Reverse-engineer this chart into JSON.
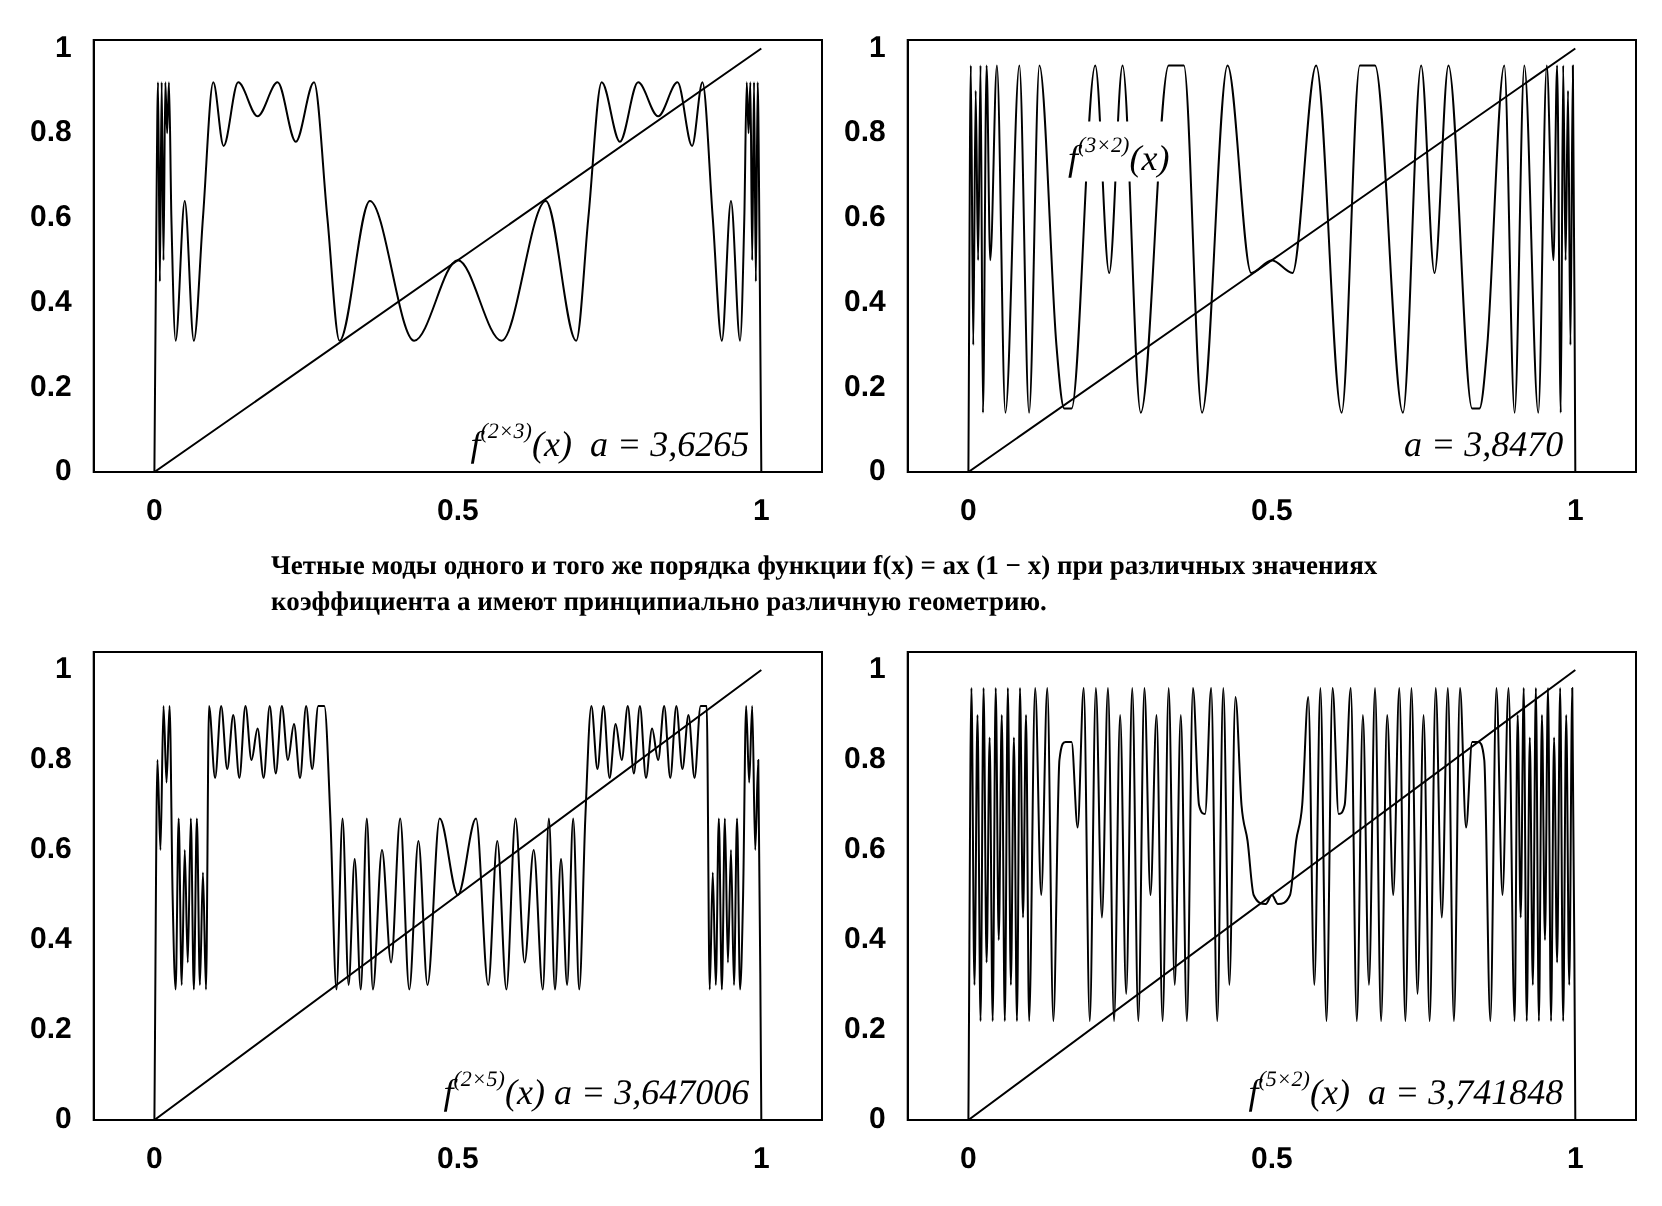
{
  "chart_data": [
    {
      "type": "line",
      "xlim": [
        -0.1,
        1.1
      ],
      "ylim": [
        0,
        1.02
      ],
      "xticks": [
        0,
        0.5,
        1
      ],
      "yticks": [
        0,
        0.2,
        0.4,
        0.6,
        0.8,
        1
      ],
      "grid": false,
      "legend": false,
      "annotations": [
        "f$^{(2×3)}$(x)  a = 3,6265"
      ],
      "series": [
        {
          "color": "#000000",
          "x": [
            0,
            0.003,
            0.006,
            0.009,
            0.012,
            0.015,
            0.018,
            0.021,
            0.024,
            0.028,
            0.035,
            0.05,
            0.065,
            0.08,
            0.097,
            0.114,
            0.138,
            0.17,
            0.203,
            0.233,
            0.263,
            0.285,
            0.305,
            0.355,
            0.428,
            0.5,
            0.572,
            0.645,
            0.695,
            0.715,
            0.737,
            0.767,
            0.797,
            0.83,
            0.862,
            0.886,
            0.903,
            0.92,
            0.935,
            0.95,
            0.965,
            0.972,
            0.976,
            0.979,
            0.982,
            0.985,
            0.988,
            0.991,
            0.994,
            0.997,
            1
          ],
          "values": [
            0,
            0.55,
            0.92,
            0.45,
            0.92,
            0.5,
            0.92,
            0.8,
            0.92,
            0.6,
            0.31,
            0.64,
            0.31,
            0.6,
            0.92,
            0.77,
            0.92,
            0.84,
            0.92,
            0.78,
            0.92,
            0.6,
            0.31,
            0.64,
            0.31,
            0.5,
            0.31,
            0.64,
            0.31,
            0.6,
            0.92,
            0.78,
            0.92,
            0.84,
            0.92,
            0.77,
            0.92,
            0.6,
            0.31,
            0.64,
            0.31,
            0.6,
            0.92,
            0.8,
            0.92,
            0.5,
            0.92,
            0.45,
            0.92,
            0.55,
            0
          ]
        },
        {
          "color": "#000000",
          "x": [
            0,
            1
          ],
          "values": [
            0,
            1
          ]
        }
      ]
    },
    {
      "type": "line",
      "xlim": [
        -0.1,
        1.1
      ],
      "ylim": [
        0,
        1.02
      ],
      "xticks": [
        0,
        0.5,
        1
      ],
      "yticks": [
        0,
        0.2,
        0.4,
        0.6,
        0.8,
        1
      ],
      "grid": false,
      "legend": false,
      "annotations": [
        "f$^{(3×2)}$(x)",
        "a = 3,8470"
      ],
      "series": [
        {
          "color": "#000000",
          "x": [
            0,
            0.004,
            0.008,
            0.012,
            0.016,
            0.02,
            0.024,
            0.03,
            0.036,
            0.047,
            0.061,
            0.084,
            0.1,
            0.117,
            0.145,
            0.158,
            0.17,
            0.209,
            0.232,
            0.254,
            0.284,
            0.33,
            0.355,
            0.385,
            0.427,
            0.466,
            0.5,
            0.534,
            0.573,
            0.615,
            0.645,
            0.67,
            0.716,
            0.746,
            0.768,
            0.791,
            0.83,
            0.842,
            0.855,
            0.883,
            0.9,
            0.916,
            0.939,
            0.953,
            0.964,
            0.97,
            0.976,
            0.98,
            0.984,
            0.988,
            0.992,
            0.996,
            1
          ],
          "values": [
            0,
            0.96,
            0.3,
            0.9,
            0.5,
            0.96,
            0.14,
            0.96,
            0.5,
            0.96,
            0.14,
            0.96,
            0.14,
            0.96,
            0.3,
            0.15,
            0.15,
            0.96,
            0.47,
            0.96,
            0.14,
            0.96,
            0.96,
            0.14,
            0.96,
            0.47,
            0.5,
            0.47,
            0.96,
            0.14,
            0.96,
            0.96,
            0.14,
            0.96,
            0.47,
            0.96,
            0.15,
            0.15,
            0.3,
            0.96,
            0.14,
            0.96,
            0.14,
            0.96,
            0.5,
            0.96,
            0.14,
            0.96,
            0.5,
            0.9,
            0.3,
            0.96,
            0
          ]
        },
        {
          "color": "#000000",
          "x": [
            0,
            1
          ],
          "values": [
            0,
            1
          ]
        }
      ]
    },
    {
      "type": "other",
      "annotations": [
        "Четные моды одного и того же порядка функции f(x) = ax (1 − x) при различных значениях коэффициента a имеют принципиально различную геометрию."
      ]
    },
    {
      "type": "line",
      "xlim": [
        -0.1,
        1.1
      ],
      "ylim": [
        0,
        1.04
      ],
      "xticks": [
        0,
        0.5,
        1
      ],
      "yticks": [
        0,
        0.2,
        0.4,
        0.6,
        0.8,
        1
      ],
      "grid": false,
      "legend": false,
      "annotations": [
        "f$^{(2×5)}$(x) a = 3,647006"
      ],
      "series": [
        {
          "color": "#000000",
          "x": [
            0,
            0.005,
            0.01,
            0.015,
            0.02,
            0.025,
            0.03,
            0.035,
            0.04,
            0.045,
            0.05,
            0.055,
            0.06,
            0.065,
            0.07,
            0.075,
            0.08,
            0.085,
            0.09,
            0.1,
            0.11,
            0.12,
            0.13,
            0.14,
            0.15,
            0.16,
            0.17,
            0.18,
            0.19,
            0.2,
            0.21,
            0.22,
            0.23,
            0.24,
            0.25,
            0.26,
            0.27,
            0.28,
            0.29,
            0.3,
            0.31,
            0.32,
            0.33,
            0.34,
            0.35,
            0.36,
            0.375,
            0.39,
            0.405,
            0.42,
            0.435,
            0.45,
            0.47,
            0.5,
            0.53,
            0.55,
            0.565,
            0.58,
            0.595,
            0.61,
            0.625,
            0.64,
            0.65,
            0.66,
            0.67,
            0.68,
            0.69,
            0.7,
            0.71,
            0.72,
            0.73,
            0.74,
            0.75,
            0.76,
            0.77,
            0.78,
            0.79,
            0.8,
            0.81,
            0.82,
            0.83,
            0.84,
            0.85,
            0.86,
            0.87,
            0.88,
            0.89,
            0.9,
            0.91,
            0.915,
            0.92,
            0.925,
            0.93,
            0.935,
            0.94,
            0.945,
            0.95,
            0.955,
            0.96,
            0.965,
            0.97,
            0.975,
            0.98,
            0.985,
            0.99,
            0.995,
            1
          ],
          "values": [
            0,
            0.8,
            0.6,
            0.92,
            0.75,
            0.92,
            0.5,
            0.29,
            0.67,
            0.3,
            0.6,
            0.35,
            0.67,
            0.29,
            0.67,
            0.3,
            0.55,
            0.29,
            0.92,
            0.76,
            0.92,
            0.78,
            0.9,
            0.76,
            0.92,
            0.8,
            0.87,
            0.76,
            0.92,
            0.77,
            0.92,
            0.8,
            0.88,
            0.76,
            0.92,
            0.78,
            0.92,
            0.92,
            0.67,
            0.29,
            0.67,
            0.3,
            0.58,
            0.29,
            0.67,
            0.29,
            0.6,
            0.35,
            0.67,
            0.29,
            0.62,
            0.3,
            0.67,
            0.5,
            0.67,
            0.3,
            0.62,
            0.29,
            0.67,
            0.35,
            0.6,
            0.29,
            0.67,
            0.29,
            0.58,
            0.3,
            0.67,
            0.29,
            0.67,
            0.92,
            0.78,
            0.92,
            0.76,
            0.88,
            0.8,
            0.92,
            0.77,
            0.92,
            0.76,
            0.87,
            0.8,
            0.92,
            0.76,
            0.92,
            0.78,
            0.9,
            0.76,
            0.92,
            0.92,
            0.29,
            0.55,
            0.3,
            0.67,
            0.29,
            0.67,
            0.35,
            0.6,
            0.3,
            0.67,
            0.29,
            0.5,
            0.92,
            0.75,
            0.92,
            0.6,
            0.8,
            0
          ]
        },
        {
          "color": "#000000",
          "x": [
            0,
            1
          ],
          "values": [
            0,
            1
          ]
        }
      ]
    },
    {
      "type": "line",
      "xlim": [
        -0.1,
        1.1
      ],
      "ylim": [
        0,
        1.04
      ],
      "xticks": [
        0,
        0.5,
        1
      ],
      "yticks": [
        0,
        0.2,
        0.4,
        0.6,
        0.8,
        1
      ],
      "grid": false,
      "legend": false,
      "annotations": [
        "f$^{(5×2)}$(x)  a = 3,741848"
      ],
      "series": [
        {
          "color": "#000000",
          "x": [
            0,
            0.005,
            0.01,
            0.015,
            0.02,
            0.025,
            0.03,
            0.035,
            0.04,
            0.045,
            0.05,
            0.055,
            0.06,
            0.065,
            0.07,
            0.075,
            0.08,
            0.085,
            0.09,
            0.095,
            0.1,
            0.11,
            0.12,
            0.13,
            0.14,
            0.15,
            0.16,
            0.17,
            0.18,
            0.19,
            0.2,
            0.21,
            0.22,
            0.23,
            0.24,
            0.25,
            0.26,
            0.27,
            0.28,
            0.29,
            0.3,
            0.31,
            0.32,
            0.33,
            0.34,
            0.35,
            0.36,
            0.37,
            0.38,
            0.39,
            0.4,
            0.41,
            0.42,
            0.43,
            0.44,
            0.45,
            0.46,
            0.47,
            0.49,
            0.5,
            0.51,
            0.53,
            0.54,
            0.55,
            0.56,
            0.57,
            0.58,
            0.59,
            0.6,
            0.61,
            0.62,
            0.63,
            0.64,
            0.65,
            0.66,
            0.67,
            0.68,
            0.69,
            0.7,
            0.71,
            0.72,
            0.73,
            0.74,
            0.75,
            0.76,
            0.77,
            0.78,
            0.79,
            0.8,
            0.81,
            0.82,
            0.83,
            0.84,
            0.85,
            0.86,
            0.87,
            0.88,
            0.89,
            0.9,
            0.905,
            0.91,
            0.915,
            0.92,
            0.925,
            0.93,
            0.935,
            0.94,
            0.945,
            0.95,
            0.955,
            0.96,
            0.965,
            0.97,
            0.975,
            0.98,
            0.985,
            0.99,
            0.995,
            1
          ],
          "values": [
            0,
            0.96,
            0.3,
            0.9,
            0.22,
            0.96,
            0.35,
            0.85,
            0.22,
            0.96,
            0.4,
            0.9,
            0.22,
            0.96,
            0.3,
            0.85,
            0.22,
            0.96,
            0.45,
            0.9,
            0.22,
            0.96,
            0.5,
            0.96,
            0.22,
            0.8,
            0.84,
            0.84,
            0.65,
            0.96,
            0.22,
            0.96,
            0.45,
            0.96,
            0.22,
            0.9,
            0.28,
            0.96,
            0.22,
            0.96,
            0.5,
            0.9,
            0.22,
            0.96,
            0.3,
            0.9,
            0.22,
            0.96,
            0.7,
            0.68,
            0.96,
            0.22,
            0.96,
            0.3,
            0.94,
            0.7,
            0.62,
            0.5,
            0.48,
            0.5,
            0.48,
            0.5,
            0.62,
            0.7,
            0.94,
            0.3,
            0.96,
            0.22,
            0.96,
            0.68,
            0.7,
            0.96,
            0.22,
            0.9,
            0.3,
            0.96,
            0.22,
            0.9,
            0.5,
            0.96,
            0.22,
            0.96,
            0.28,
            0.9,
            0.22,
            0.96,
            0.45,
            0.96,
            0.22,
            0.96,
            0.65,
            0.84,
            0.84,
            0.8,
            0.22,
            0.96,
            0.5,
            0.96,
            0.22,
            0.9,
            0.45,
            0.96,
            0.22,
            0.85,
            0.3,
            0.96,
            0.22,
            0.9,
            0.4,
            0.96,
            0.22,
            0.85,
            0.35,
            0.96,
            0.22,
            0.9,
            0.3,
            0.96,
            0
          ]
        },
        {
          "color": "#000000",
          "x": [
            0,
            1
          ],
          "values": [
            0,
            1
          ]
        }
      ]
    }
  ]
}
